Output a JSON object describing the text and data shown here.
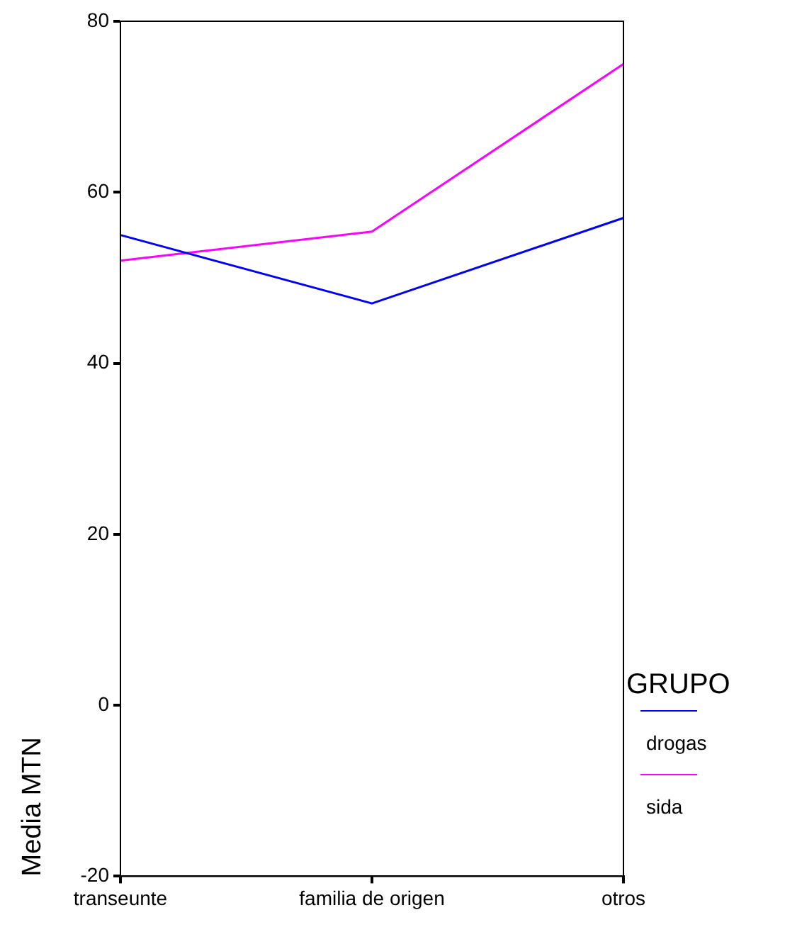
{
  "chart_data": {
    "type": "line",
    "ylabel": "Media MTN",
    "legend_title": "GRUPO",
    "categories": [
      "transeunte",
      "familia de origen",
      "otros"
    ],
    "series": [
      {
        "name": "drogas",
        "color": "#0000ff",
        "values": [
          55,
          47,
          57
        ]
      },
      {
        "name": "sida",
        "color": "#ff00ff",
        "values": [
          52,
          55.4,
          75
        ]
      }
    ],
    "ylim": [
      -20,
      80
    ],
    "yticks": [
      -20,
      0,
      20,
      40,
      60,
      80
    ],
    "grid": false,
    "legend": "right",
    "marker": "none",
    "line_style": "solid"
  }
}
